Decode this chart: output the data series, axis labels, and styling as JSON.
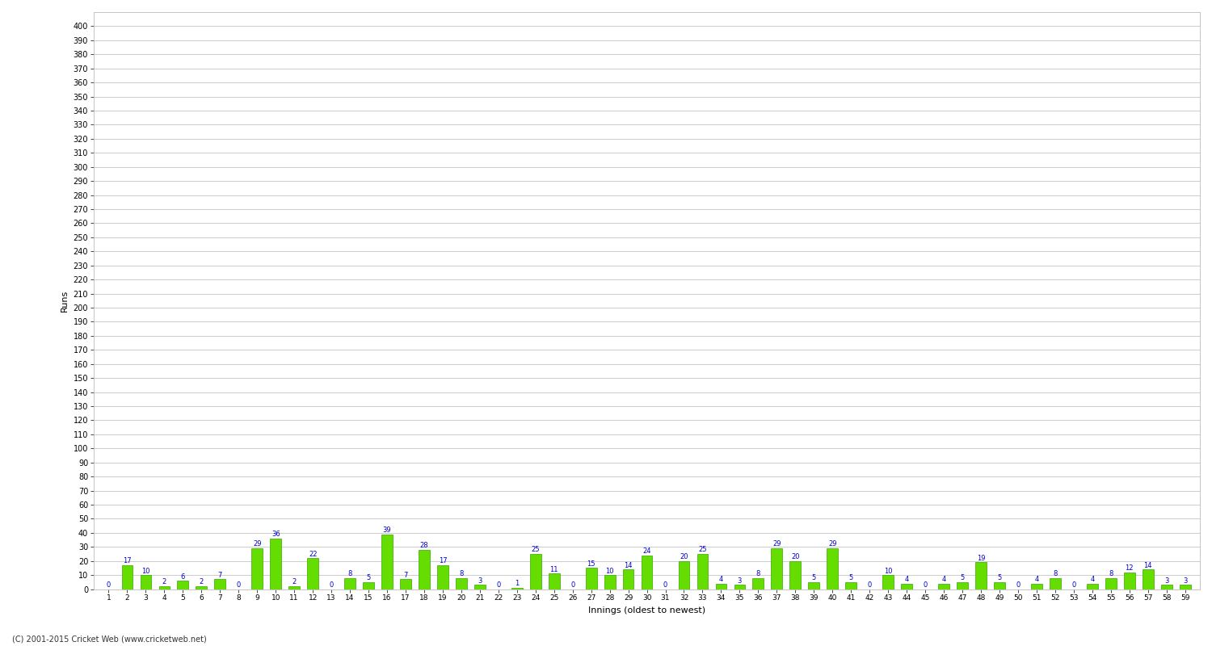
{
  "xlabel": "Innings (oldest to newest)",
  "ylabel": "Runs",
  "copyright": "(C) 2001-2015 Cricket Web (www.cricketweb.net)",
  "bar_color": "#66dd00",
  "bar_edge_color": "#33aa00",
  "label_color": "#0000cc",
  "background_color": "#ffffff",
  "plot_background": "#ffffff",
  "grid_color": "#cccccc",
  "ylim": [
    0,
    410
  ],
  "yticks": [
    0,
    10,
    20,
    30,
    40,
    50,
    60,
    70,
    80,
    90,
    100,
    110,
    120,
    130,
    140,
    150,
    160,
    170,
    180,
    190,
    200,
    210,
    220,
    230,
    240,
    250,
    260,
    270,
    280,
    290,
    300,
    310,
    320,
    330,
    340,
    350,
    360,
    370,
    380,
    390,
    400
  ],
  "values": [
    0,
    17,
    10,
    2,
    6,
    2,
    7,
    0,
    29,
    36,
    2,
    22,
    0,
    8,
    5,
    39,
    7,
    28,
    17,
    8,
    3,
    0,
    1,
    25,
    11,
    0,
    15,
    10,
    14,
    24,
    0,
    20,
    25,
    4,
    3,
    8,
    29,
    20,
    5,
    29,
    5,
    0,
    10,
    4,
    0,
    4,
    5,
    19,
    5,
    0,
    4,
    8,
    0,
    4,
    8,
    12,
    14,
    3,
    3
  ],
  "innings": [
    1,
    2,
    3,
    4,
    5,
    6,
    7,
    8,
    9,
    10,
    11,
    12,
    13,
    14,
    15,
    16,
    17,
    18,
    19,
    20,
    21,
    22,
    23,
    24,
    25,
    26,
    27,
    28,
    29,
    30,
    31,
    32,
    33,
    34,
    35,
    36,
    37,
    38,
    39,
    40,
    41,
    42,
    43,
    44,
    45,
    46,
    47,
    48,
    49,
    50,
    51,
    52,
    53,
    54,
    55,
    56,
    57,
    58,
    59
  ]
}
